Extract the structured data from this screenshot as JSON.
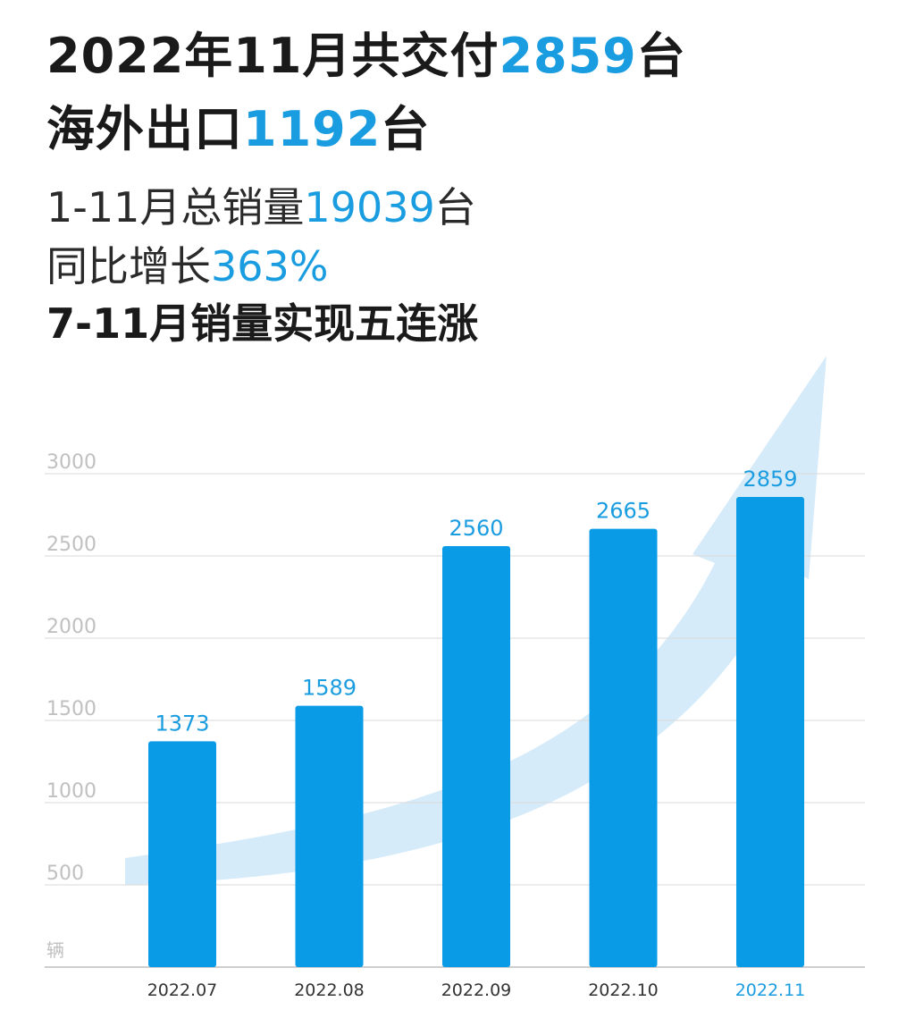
{
  "headline": {
    "line1_pre": "2022年11月共交付",
    "line1_num": "2859",
    "line1_post": "台",
    "line2_pre": "海外出口",
    "line2_num": "1192",
    "line2_post": "台",
    "line3_pre": "1-11月总销量",
    "line3_num": "19039",
    "line3_post": "台",
    "line4_pre": "同比增长",
    "line4_num": "363%",
    "line5": "7-11月销量实现五连涨"
  },
  "colors": {
    "accent": "#1a9de0",
    "bar": "#0a9be6",
    "arrow": "#cfe8f8",
    "grid": "#d9d9d9",
    "axis_label": "#c0c0c0"
  },
  "chart_data": {
    "type": "bar",
    "categories": [
      "2022.07",
      "2022.08",
      "2022.09",
      "2022.10",
      "2022.11"
    ],
    "values": [
      1373,
      1589,
      2560,
      2665,
      2859
    ],
    "data_labels": [
      "1373",
      "1589",
      "2560",
      "2665",
      "2859"
    ],
    "yticks": [
      "3000",
      "2500",
      "2000",
      "1500",
      "1000",
      "500"
    ],
    "ylabel": "辆",
    "ylim": [
      0,
      3000
    ],
    "grid": true,
    "highlight_category": "2022.11"
  }
}
